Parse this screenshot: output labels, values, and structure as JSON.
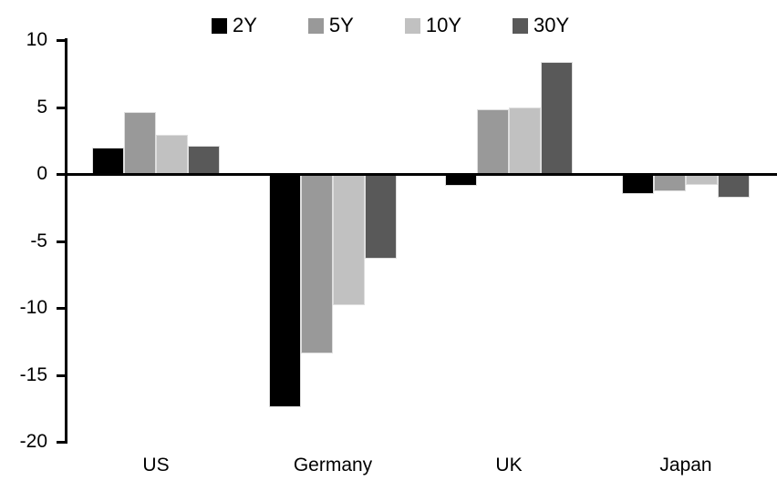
{
  "chart_data": {
    "type": "bar",
    "title": "",
    "categories": [
      "US",
      "Germany",
      "UK",
      "Japan"
    ],
    "series": [
      {
        "name": "2Y",
        "color": "#000000",
        "values": [
          2.0,
          -17.4,
          -0.9,
          -1.5
        ]
      },
      {
        "name": "5Y",
        "color": "#999999",
        "values": [
          4.6,
          -13.4,
          4.8,
          -1.3
        ]
      },
      {
        "name": "10Y",
        "color": "#c1c1c1",
        "values": [
          2.9,
          -9.8,
          5.0,
          -0.8
        ]
      },
      {
        "name": "30Y",
        "color": "#595959",
        "values": [
          2.1,
          -6.3,
          8.4,
          -1.8
        ]
      }
    ],
    "xlabel": "",
    "ylabel": "",
    "ylim": [
      -20,
      10
    ],
    "yticks": [
      10,
      5,
      0,
      -5,
      -10,
      -15,
      -20
    ],
    "legend_position": "top",
    "grid": false,
    "axis_color": "#000000",
    "background_color": "#ffffff"
  }
}
